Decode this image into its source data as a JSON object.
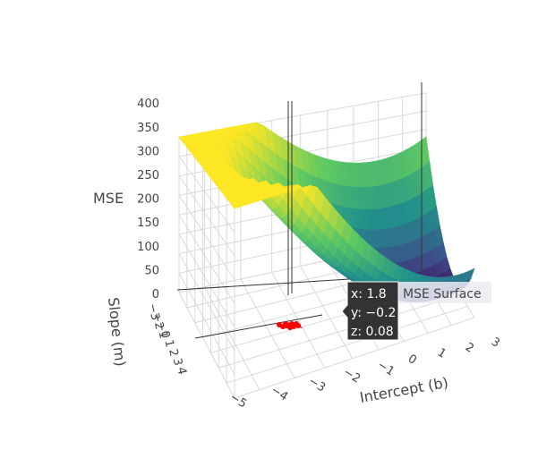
{
  "chart_data": {
    "type": "surface",
    "axes": {
      "x": {
        "title": "Intercept (b)",
        "range": [
          -5.5,
          3
        ],
        "ticks": [
          "−5",
          "−4",
          "−3",
          "−2",
          "−1",
          "0",
          "1",
          "2",
          "3"
        ]
      },
      "y": {
        "title": "Slope (m)",
        "range": [
          -3,
          4
        ],
        "ticks": [
          "−3",
          "−2",
          "−1",
          "0",
          "1",
          "2",
          "3",
          "4"
        ]
      },
      "z": {
        "title": "MSE",
        "range": [
          0,
          400
        ],
        "ticks": [
          "0",
          "50",
          "100",
          "150",
          "200",
          "250",
          "300",
          "350",
          "400"
        ]
      }
    },
    "series": [
      {
        "name": "MSE Surface",
        "kind": "surface",
        "colorscale": [
          "#440154",
          "#3b528b",
          "#21918c",
          "#5ec962",
          "#fde725"
        ],
        "min_z": 0.08
      },
      {
        "kind": "path",
        "color": "#ff0000"
      }
    ],
    "hover": {
      "x_label": "x: 1.8",
      "y_label": "y: −0.2",
      "z_label": "z: 0.08",
      "trace_name": "MSE Surface"
    }
  }
}
